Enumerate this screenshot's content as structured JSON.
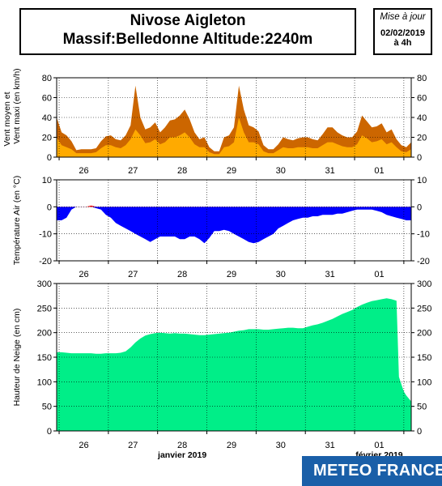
{
  "header": {
    "title_line1": "Nivose Aigleton",
    "title_line2": "Massif:Belledonne Altitude:2240m"
  },
  "update": {
    "label": "Mise à jour",
    "date": "02/02/2019",
    "time": "à 4h"
  },
  "logo": {
    "text": "METEO FRANCE"
  },
  "colors": {
    "wind_max": "#cc6600",
    "wind_mean": "#ffaa00",
    "temp_cold": "#0000ff",
    "temp_warm": "#ff0000",
    "snow": "#00ee88"
  },
  "chart_data": [
    {
      "type": "area",
      "ylabel": "Vent moyen et Vent maxi (en km/h)",
      "ylim": [
        0,
        80
      ],
      "yticks": [
        0,
        20,
        40,
        60,
        80
      ],
      "xlim": [
        0,
        7.2
      ],
      "xtick_labels": [
        "26",
        "27",
        "28",
        "29",
        "30",
        "31",
        "01"
      ],
      "grid": true,
      "series": [
        {
          "key": "max",
          "x": [
            0.0,
            0.1,
            0.2,
            0.3,
            0.4,
            0.5,
            0.6,
            0.7,
            0.8,
            0.9,
            1.0,
            1.1,
            1.2,
            1.3,
            1.4,
            1.5,
            1.6,
            1.7,
            1.8,
            1.9,
            2.0,
            2.1,
            2.2,
            2.3,
            2.4,
            2.5,
            2.6,
            2.7,
            2.8,
            2.9,
            3.0,
            3.1,
            3.2,
            3.3,
            3.4,
            3.5,
            3.6,
            3.7,
            3.8,
            3.9,
            4.0,
            4.1,
            4.2,
            4.3,
            4.4,
            4.5,
            4.6,
            4.7,
            4.8,
            4.9,
            5.0,
            5.1,
            5.2,
            5.3,
            5.4,
            5.5,
            5.6,
            5.7,
            5.8,
            5.9,
            6.0,
            6.1,
            6.2,
            6.3,
            6.4,
            6.5,
            6.6,
            6.7,
            6.8,
            6.9,
            7.0,
            7.1,
            7.2
          ],
          "values": [
            40,
            25,
            22,
            16,
            7,
            8,
            8,
            8,
            9,
            16,
            21,
            22,
            18,
            17,
            22,
            32,
            72,
            40,
            28,
            30,
            35,
            25,
            30,
            37,
            38,
            42,
            48,
            38,
            25,
            18,
            20,
            10,
            6,
            6,
            20,
            22,
            30,
            72,
            48,
            32,
            30,
            26,
            12,
            8,
            8,
            13,
            20,
            18,
            17,
            19,
            20,
            20,
            18,
            17,
            23,
            30,
            30,
            25,
            22,
            20,
            20,
            26,
            42,
            36,
            30,
            31,
            34,
            25,
            28,
            18,
            12,
            10,
            15
          ]
        },
        {
          "key": "mean",
          "x": [
            0.0,
            0.1,
            0.2,
            0.3,
            0.4,
            0.5,
            0.6,
            0.7,
            0.8,
            0.9,
            1.0,
            1.1,
            1.2,
            1.3,
            1.4,
            1.5,
            1.6,
            1.7,
            1.8,
            1.9,
            2.0,
            2.1,
            2.2,
            2.3,
            2.4,
            2.5,
            2.6,
            2.7,
            2.8,
            2.9,
            3.0,
            3.1,
            3.2,
            3.3,
            3.4,
            3.5,
            3.6,
            3.7,
            3.8,
            3.9,
            4.0,
            4.1,
            4.2,
            4.3,
            4.4,
            4.5,
            4.6,
            4.7,
            4.8,
            4.9,
            5.0,
            5.1,
            5.2,
            5.3,
            5.4,
            5.5,
            5.6,
            5.7,
            5.8,
            5.9,
            6.0,
            6.1,
            6.2,
            6.3,
            6.4,
            6.5,
            6.6,
            6.7,
            6.8,
            6.9,
            7.0,
            7.1,
            7.2
          ],
          "values": [
            20,
            12,
            10,
            8,
            4,
            4,
            4,
            4,
            5,
            9,
            12,
            12,
            10,
            9,
            12,
            18,
            28,
            22,
            14,
            15,
            18,
            13,
            15,
            20,
            20,
            22,
            25,
            20,
            13,
            10,
            10,
            5,
            3,
            3,
            10,
            11,
            15,
            40,
            25,
            15,
            15,
            13,
            6,
            4,
            4,
            7,
            10,
            9,
            9,
            10,
            10,
            10,
            9,
            9,
            12,
            15,
            15,
            13,
            11,
            10,
            10,
            13,
            22,
            19,
            15,
            16,
            18,
            13,
            15,
            10,
            6,
            5,
            8
          ]
        }
      ]
    },
    {
      "type": "area",
      "ylabel": "Température Air (en °C)",
      "ylim": [
        -20,
        10
      ],
      "yticks": [
        -20,
        -10,
        0,
        10
      ],
      "xlim": [
        0,
        7.2
      ],
      "xtick_labels": [
        "26",
        "27",
        "28",
        "29",
        "30",
        "31",
        "01"
      ],
      "grid": true,
      "series": [
        {
          "key": "temperature",
          "x": [
            0.0,
            0.1,
            0.2,
            0.3,
            0.4,
            0.5,
            0.6,
            0.7,
            0.8,
            0.9,
            1.0,
            1.1,
            1.2,
            1.3,
            1.4,
            1.5,
            1.6,
            1.7,
            1.8,
            1.9,
            2.0,
            2.1,
            2.2,
            2.3,
            2.4,
            2.5,
            2.6,
            2.7,
            2.8,
            2.9,
            3.0,
            3.1,
            3.2,
            3.3,
            3.4,
            3.5,
            3.6,
            3.7,
            3.8,
            3.9,
            4.0,
            4.1,
            4.2,
            4.3,
            4.4,
            4.5,
            4.6,
            4.7,
            4.8,
            4.9,
            5.0,
            5.1,
            5.2,
            5.3,
            5.4,
            5.5,
            5.6,
            5.7,
            5.8,
            5.9,
            6.0,
            6.1,
            6.2,
            6.3,
            6.4,
            6.5,
            6.6,
            6.7,
            6.8,
            6.9,
            7.0,
            7.1,
            7.2
          ],
          "values": [
            -5,
            -5,
            -4,
            -1,
            0,
            0,
            0,
            0.5,
            -0.5,
            -1,
            -3,
            -4,
            -6,
            -7,
            -8,
            -9,
            -10,
            -11,
            -12,
            -13,
            -12,
            -11,
            -11,
            -11,
            -11,
            -12,
            -12,
            -11,
            -11,
            -12,
            -13.5,
            -11.5,
            -9,
            -9,
            -8.5,
            -9,
            -10,
            -11,
            -12,
            -13,
            -13.5,
            -13,
            -12,
            -11,
            -10,
            -8,
            -7,
            -6,
            -5,
            -4.5,
            -4,
            -4,
            -3.5,
            -3.5,
            -3,
            -3,
            -3,
            -2.5,
            -2.5,
            -2,
            -1.5,
            -1,
            -1,
            -1,
            -1,
            -1.5,
            -2,
            -3,
            -3.5,
            -4,
            -4.5,
            -5,
            -5
          ]
        }
      ]
    },
    {
      "type": "area",
      "ylabel": "Hauteur de Neige (en cm)",
      "ylim": [
        0,
        300
      ],
      "yticks": [
        0,
        50,
        100,
        150,
        200,
        250,
        300
      ],
      "xlim": [
        0,
        7.2
      ],
      "xtick_labels": [
        "26",
        "27",
        "28",
        "29",
        "30",
        "31",
        "01"
      ],
      "month_labels": [
        "janvier 2019",
        "février 2019"
      ],
      "grid": true,
      "series": [
        {
          "key": "snow_depth",
          "x": [
            0.0,
            0.1,
            0.2,
            0.3,
            0.4,
            0.5,
            0.6,
            0.7,
            0.8,
            0.9,
            1.0,
            1.1,
            1.2,
            1.3,
            1.4,
            1.5,
            1.6,
            1.7,
            1.8,
            1.9,
            2.0,
            2.1,
            2.2,
            2.3,
            2.4,
            2.5,
            2.6,
            2.7,
            2.8,
            2.9,
            3.0,
            3.1,
            3.2,
            3.3,
            3.4,
            3.5,
            3.6,
            3.7,
            3.8,
            3.9,
            4.0,
            4.1,
            4.2,
            4.3,
            4.4,
            4.5,
            4.6,
            4.7,
            4.8,
            4.9,
            5.0,
            5.1,
            5.2,
            5.3,
            5.4,
            5.5,
            5.6,
            5.7,
            5.8,
            5.9,
            6.0,
            6.1,
            6.2,
            6.3,
            6.4,
            6.5,
            6.6,
            6.7,
            6.8,
            6.9,
            6.95,
            7.0,
            7.05,
            7.1,
            7.2
          ],
          "values": [
            160,
            160,
            159,
            158,
            158,
            158,
            158,
            158,
            157,
            157,
            158,
            158,
            158,
            159,
            162,
            170,
            180,
            188,
            194,
            197,
            199,
            200,
            199,
            198,
            199,
            198,
            198,
            197,
            196,
            195,
            195,
            196,
            197,
            198,
            199,
            200,
            202,
            204,
            205,
            207,
            207,
            207,
            206,
            206,
            207,
            208,
            209,
            210,
            210,
            209,
            209,
            212,
            215,
            217,
            220,
            224,
            228,
            233,
            238,
            242,
            246,
            252,
            257,
            261,
            264,
            266,
            268,
            270,
            268,
            265,
            110,
            95,
            80,
            72,
            60
          ]
        }
      ]
    }
  ]
}
